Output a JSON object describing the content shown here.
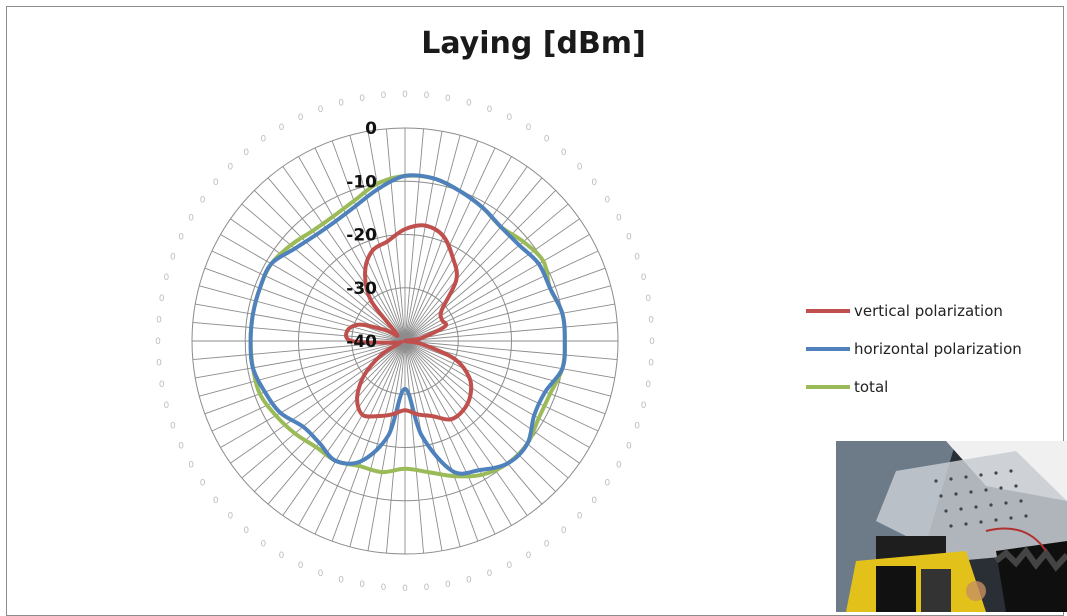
{
  "chart_data": {
    "type": "radar",
    "title": "Laying [dBm]",
    "radial_ticks": [
      "0",
      "-10",
      "-20",
      "-30",
      "-40"
    ],
    "rlim": [
      -40,
      0
    ],
    "angle_labels_count": 72,
    "angle_label_text": "0",
    "grid": true,
    "legend_position": "right",
    "series": [
      {
        "name": "vertical polarization",
        "color": "#c0504d",
        "values_by_angle_deg": {
          "0": -19,
          "10": -18,
          "20": -19,
          "30": -22,
          "40": -25,
          "50": -31,
          "60": -32,
          "70": -32,
          "80": -37,
          "90": -40,
          "100": -37,
          "110": -30,
          "120": -26,
          "130": -24,
          "140": -23,
          "150": -23,
          "160": -25,
          "170": -26,
          "180": -27,
          "190": -26,
          "200": -25,
          "210": -24,
          "220": -26,
          "230": -30,
          "240": -35,
          "250": -39,
          "260": -38,
          "270": -30,
          "280": -29,
          "290": -31,
          "300": -36,
          "310": -38,
          "320": -30,
          "330": -25,
          "340": -22,
          "350": -21
        }
      },
      {
        "name": "horizontal polarization",
        "color": "#4f81bd",
        "values_by_angle_deg": {
          "0": -9,
          "10": -9,
          "20": -10,
          "30": -11,
          "40": -12,
          "50": -12,
          "60": -11,
          "70": -11,
          "80": -10,
          "90": -10,
          "100": -10,
          "110": -12,
          "120": -12,
          "130": -10,
          "140": -10,
          "150": -12,
          "160": -14,
          "170": -22,
          "180": -31,
          "190": -22,
          "200": -16,
          "210": -14,
          "220": -15,
          "230": -15,
          "240": -13,
          "250": -12,
          "260": -11,
          "270": -11,
          "280": -11,
          "290": -11,
          "300": -11,
          "310": -13,
          "320": -14,
          "330": -14,
          "340": -13,
          "350": -11
        }
      },
      {
        "name": "total",
        "color": "#9bbb59",
        "values_by_angle_deg": {
          "0": -9,
          "10": -9,
          "20": -10,
          "30": -11,
          "40": -12,
          "50": -11,
          "60": -10,
          "70": -11,
          "80": -10,
          "90": -10,
          "100": -10,
          "110": -11,
          "120": -11,
          "130": -10,
          "140": -10,
          "150": -11,
          "160": -13,
          "170": -15,
          "180": -16,
          "190": -15,
          "200": -15,
          "210": -14,
          "220": -14,
          "230": -13,
          "240": -12,
          "250": -11,
          "260": -11,
          "270": -11,
          "280": -11,
          "290": -11,
          "300": -11,
          "310": -12,
          "320": -13,
          "330": -13,
          "340": -12,
          "350": -10
        }
      }
    ]
  },
  "legend": [
    {
      "label": "vertical polarization",
      "color": "#c0504d"
    },
    {
      "label": "horizontal polarization",
      "color": "#4f81bd"
    },
    {
      "label": "total",
      "color": "#9bbb59"
    }
  ],
  "photo": {
    "icon": "antenna-setup-photo"
  }
}
